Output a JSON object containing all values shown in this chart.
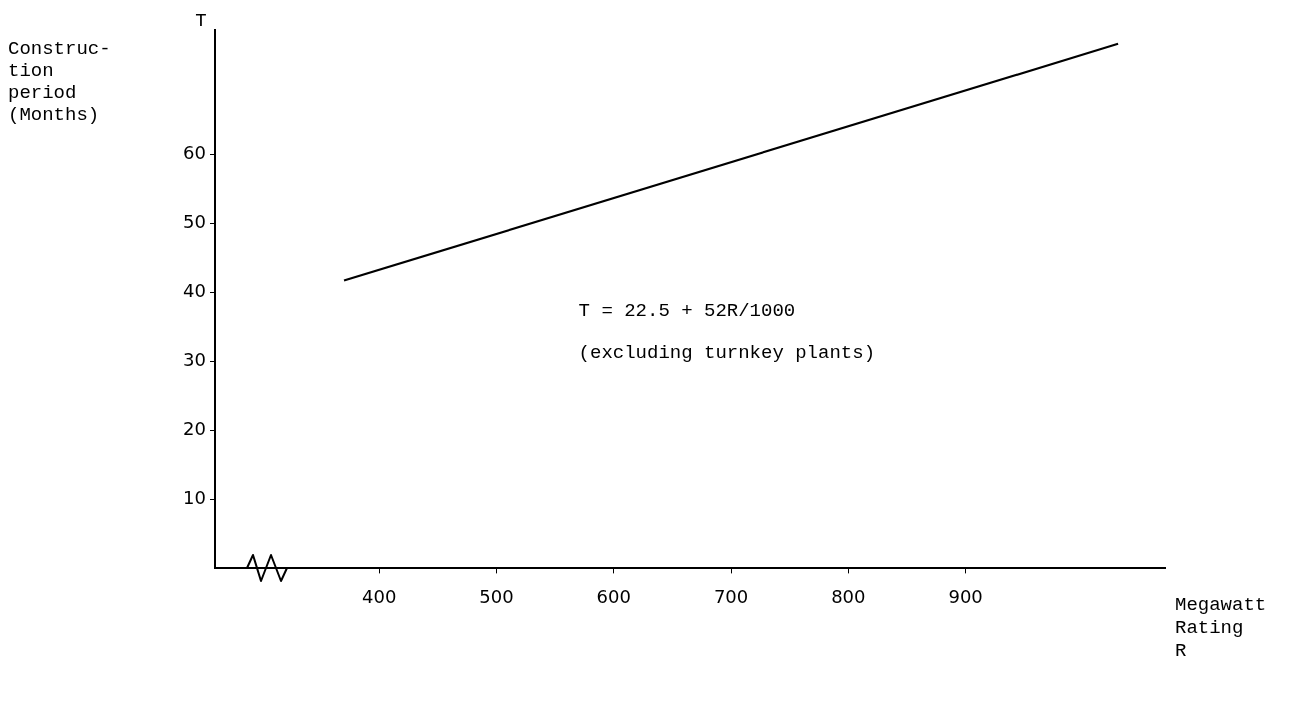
{
  "chart_data": {
    "type": "line",
    "ylabel": "Construc- tion period (Months)",
    "xlabel": "Megawatt Rating R",
    "annotations": [
      "T",
      "T = 22.5 + 52R/1000",
      "(excluding turnkey plants)"
    ],
    "series": [
      {
        "x": [
          370,
          1030
        ],
        "values": [
          41.7,
          76
        ],
        "color": "#000000"
      }
    ],
    "xlim": [
      260,
      1070
    ],
    "xticks": [
      400,
      500,
      600,
      700,
      800,
      900
    ],
    "ylim": [
      0,
      78
    ],
    "yticks": [
      10,
      20,
      30,
      40,
      50,
      60
    ],
    "marker": "none",
    "line_style": "solid",
    "legend": false
  }
}
